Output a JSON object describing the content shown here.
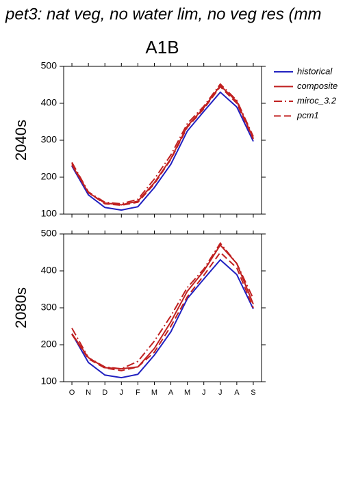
{
  "chart_data": [
    {
      "type": "line",
      "title": "pet3: nat veg, no water lim, no veg res (mm",
      "subtitle": "A1B",
      "y_label": "2040s",
      "categories": [
        null,
        null,
        null,
        null,
        null,
        null,
        null,
        null,
        null,
        null,
        null,
        null
      ],
      "series": [
        {
          "name": "historical",
          "color": "#2020c0",
          "dash": "solid",
          "values": [
            230,
            152,
            118,
            111,
            120,
            172,
            235,
            325,
            378,
            430,
            390,
            297
          ]
        },
        {
          "name": "composite",
          "color": "#c02020",
          "dash": "solid",
          "values": [
            233,
            158,
            130,
            125,
            135,
            185,
            250,
            338,
            388,
            448,
            405,
            305
          ]
        },
        {
          "name": "miroc_3.2",
          "color": "#c02020",
          "dash": "dashdot",
          "values": [
            240,
            160,
            132,
            128,
            140,
            195,
            260,
            345,
            392,
            452,
            408,
            310
          ]
        },
        {
          "name": "pcm1",
          "color": "#c02020",
          "dash": "dashed",
          "values": [
            237,
            158,
            128,
            124,
            132,
            182,
            248,
            335,
            385,
            445,
            400,
            303
          ]
        }
      ],
      "ylim": [
        100,
        500
      ],
      "yticks": [
        100,
        200,
        300,
        400,
        500
      ],
      "grid": false,
      "legend": "outside-right"
    },
    {
      "type": "line",
      "y_label": "2080s",
      "categories": [
        "O",
        "N",
        "D",
        "J",
        "F",
        "M",
        "A",
        "M",
        "J",
        "J",
        "A",
        "S"
      ],
      "series": [
        {
          "color": "#2020c0",
          "dash": "solid",
          "values": [
            230,
            152,
            118,
            111,
            120,
            172,
            235,
            325,
            378,
            430,
            390,
            297
          ]
        },
        {
          "color": "#c02020",
          "dash": "solid",
          "values": [
            230,
            165,
            138,
            135,
            140,
            190,
            262,
            345,
            400,
            470,
            420,
            310
          ]
        },
        {
          "color": "#c02020",
          "dash": "dashdot",
          "values": [
            245,
            165,
            140,
            135,
            155,
            210,
            278,
            355,
            405,
            475,
            420,
            325
          ]
        },
        {
          "color": "#c02020",
          "dash": "dashed",
          "values": [
            228,
            162,
            137,
            130,
            140,
            180,
            250,
            330,
            388,
            450,
            408,
            300
          ]
        }
      ],
      "ylim": [
        100,
        500
      ],
      "yticks": [
        100,
        200,
        300,
        400,
        500
      ],
      "grid": false
    }
  ]
}
